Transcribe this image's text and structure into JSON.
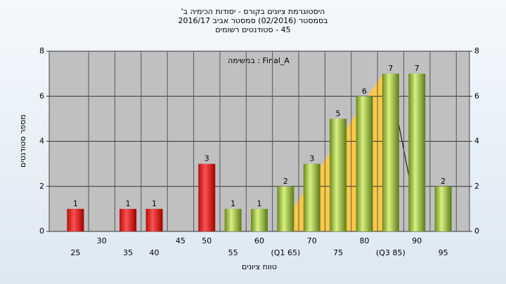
{
  "chart_data": {
    "type": "bar",
    "title": "היסטוגרמת ציונים בקורס - יסודות הכימיה ב'",
    "subtitle": [
      "בסמסטר (02/2016) סמסטר אביב 2016/17",
      "45 - סטודנטים רשומים"
    ],
    "annotation": "Final_A : במשימה",
    "x_label": "טווח ציונים",
    "y_label": "מספר סטודנטים",
    "categories": [
      "25",
      "30",
      "35",
      "40",
      "45",
      "50",
      "55",
      "60",
      "(Q1 65)",
      "70",
      "75",
      "80",
      "(Q3 85)",
      "90",
      "95"
    ],
    "values": [
      1,
      0,
      1,
      1,
      0,
      3,
      1,
      1,
      2,
      3,
      5,
      6,
      7,
      7,
      2
    ],
    "colors": [
      "red",
      "red",
      "red",
      "red",
      "red",
      "red",
      "green",
      "green",
      "green",
      "green",
      "green",
      "green",
      "green",
      "green",
      "green"
    ],
    "ylim": [
      0,
      8
    ],
    "yticks": [
      0,
      2,
      4,
      6,
      8
    ],
    "y2lim": [
      0,
      8
    ],
    "y2ticks": [
      0,
      2,
      4,
      6,
      8
    ],
    "grid": true
  }
}
